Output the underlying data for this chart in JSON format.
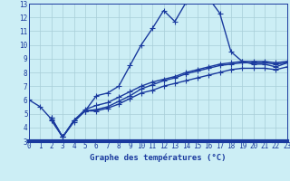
{
  "xlabel": "Graphe des températures (°C)",
  "bg_color": "#cceef5",
  "line_color": "#1a3a9e",
  "grid_color": "#a8cdd8",
  "xlim": [
    0,
    23
  ],
  "ylim": [
    3,
    13
  ],
  "xticks": [
    0,
    1,
    2,
    3,
    4,
    5,
    6,
    7,
    8,
    9,
    10,
    11,
    12,
    13,
    14,
    15,
    16,
    17,
    18,
    19,
    20,
    21,
    22,
    23
  ],
  "yticks": [
    3,
    4,
    5,
    6,
    7,
    8,
    9,
    10,
    11,
    12,
    13
  ],
  "curve1_x": [
    0,
    1,
    2,
    3,
    4,
    5,
    6,
    7,
    8,
    9,
    10,
    11,
    12,
    13,
    14,
    15,
    16,
    17,
    18,
    19,
    20,
    21,
    22,
    23
  ],
  "curve1_y": [
    6.0,
    5.5,
    4.6,
    3.3,
    4.5,
    5.2,
    6.3,
    6.5,
    7.0,
    8.5,
    10.0,
    11.2,
    12.5,
    11.7,
    13.1,
    13.3,
    13.4,
    12.3,
    9.5,
    8.8,
    8.6,
    8.6,
    8.4,
    8.7
  ],
  "curve2_x": [
    2,
    3,
    4,
    5,
    6,
    7,
    8,
    9,
    10,
    11,
    12,
    13,
    14,
    15,
    16,
    17,
    18,
    19,
    20,
    21,
    22,
    23
  ],
  "curve2_y": [
    4.7,
    3.3,
    4.4,
    5.2,
    5.3,
    5.5,
    5.9,
    6.3,
    6.8,
    7.1,
    7.4,
    7.6,
    7.9,
    8.1,
    8.3,
    8.5,
    8.6,
    8.7,
    8.7,
    8.7,
    8.6,
    8.7
  ],
  "curve3_x": [
    2,
    3,
    4,
    5,
    6,
    7,
    8,
    9,
    10,
    11,
    12,
    13,
    14,
    15,
    16,
    17,
    18,
    19,
    20,
    21,
    22,
    23
  ],
  "curve3_y": [
    4.7,
    3.3,
    4.5,
    5.3,
    5.6,
    5.8,
    6.2,
    6.6,
    7.0,
    7.3,
    7.5,
    7.7,
    8.0,
    8.2,
    8.4,
    8.6,
    8.7,
    8.8,
    8.8,
    8.8,
    8.7,
    8.8
  ],
  "curve4_x": [
    2,
    3,
    4,
    5,
    6,
    7,
    8,
    9,
    10,
    11,
    12,
    13,
    14,
    15,
    16,
    17,
    18,
    19,
    20,
    21,
    22,
    23
  ],
  "curve4_y": [
    4.5,
    3.3,
    4.5,
    5.2,
    5.2,
    5.4,
    5.7,
    6.1,
    6.5,
    6.7,
    7.0,
    7.2,
    7.4,
    7.6,
    7.8,
    8.0,
    8.2,
    8.3,
    8.3,
    8.3,
    8.2,
    8.4
  ]
}
